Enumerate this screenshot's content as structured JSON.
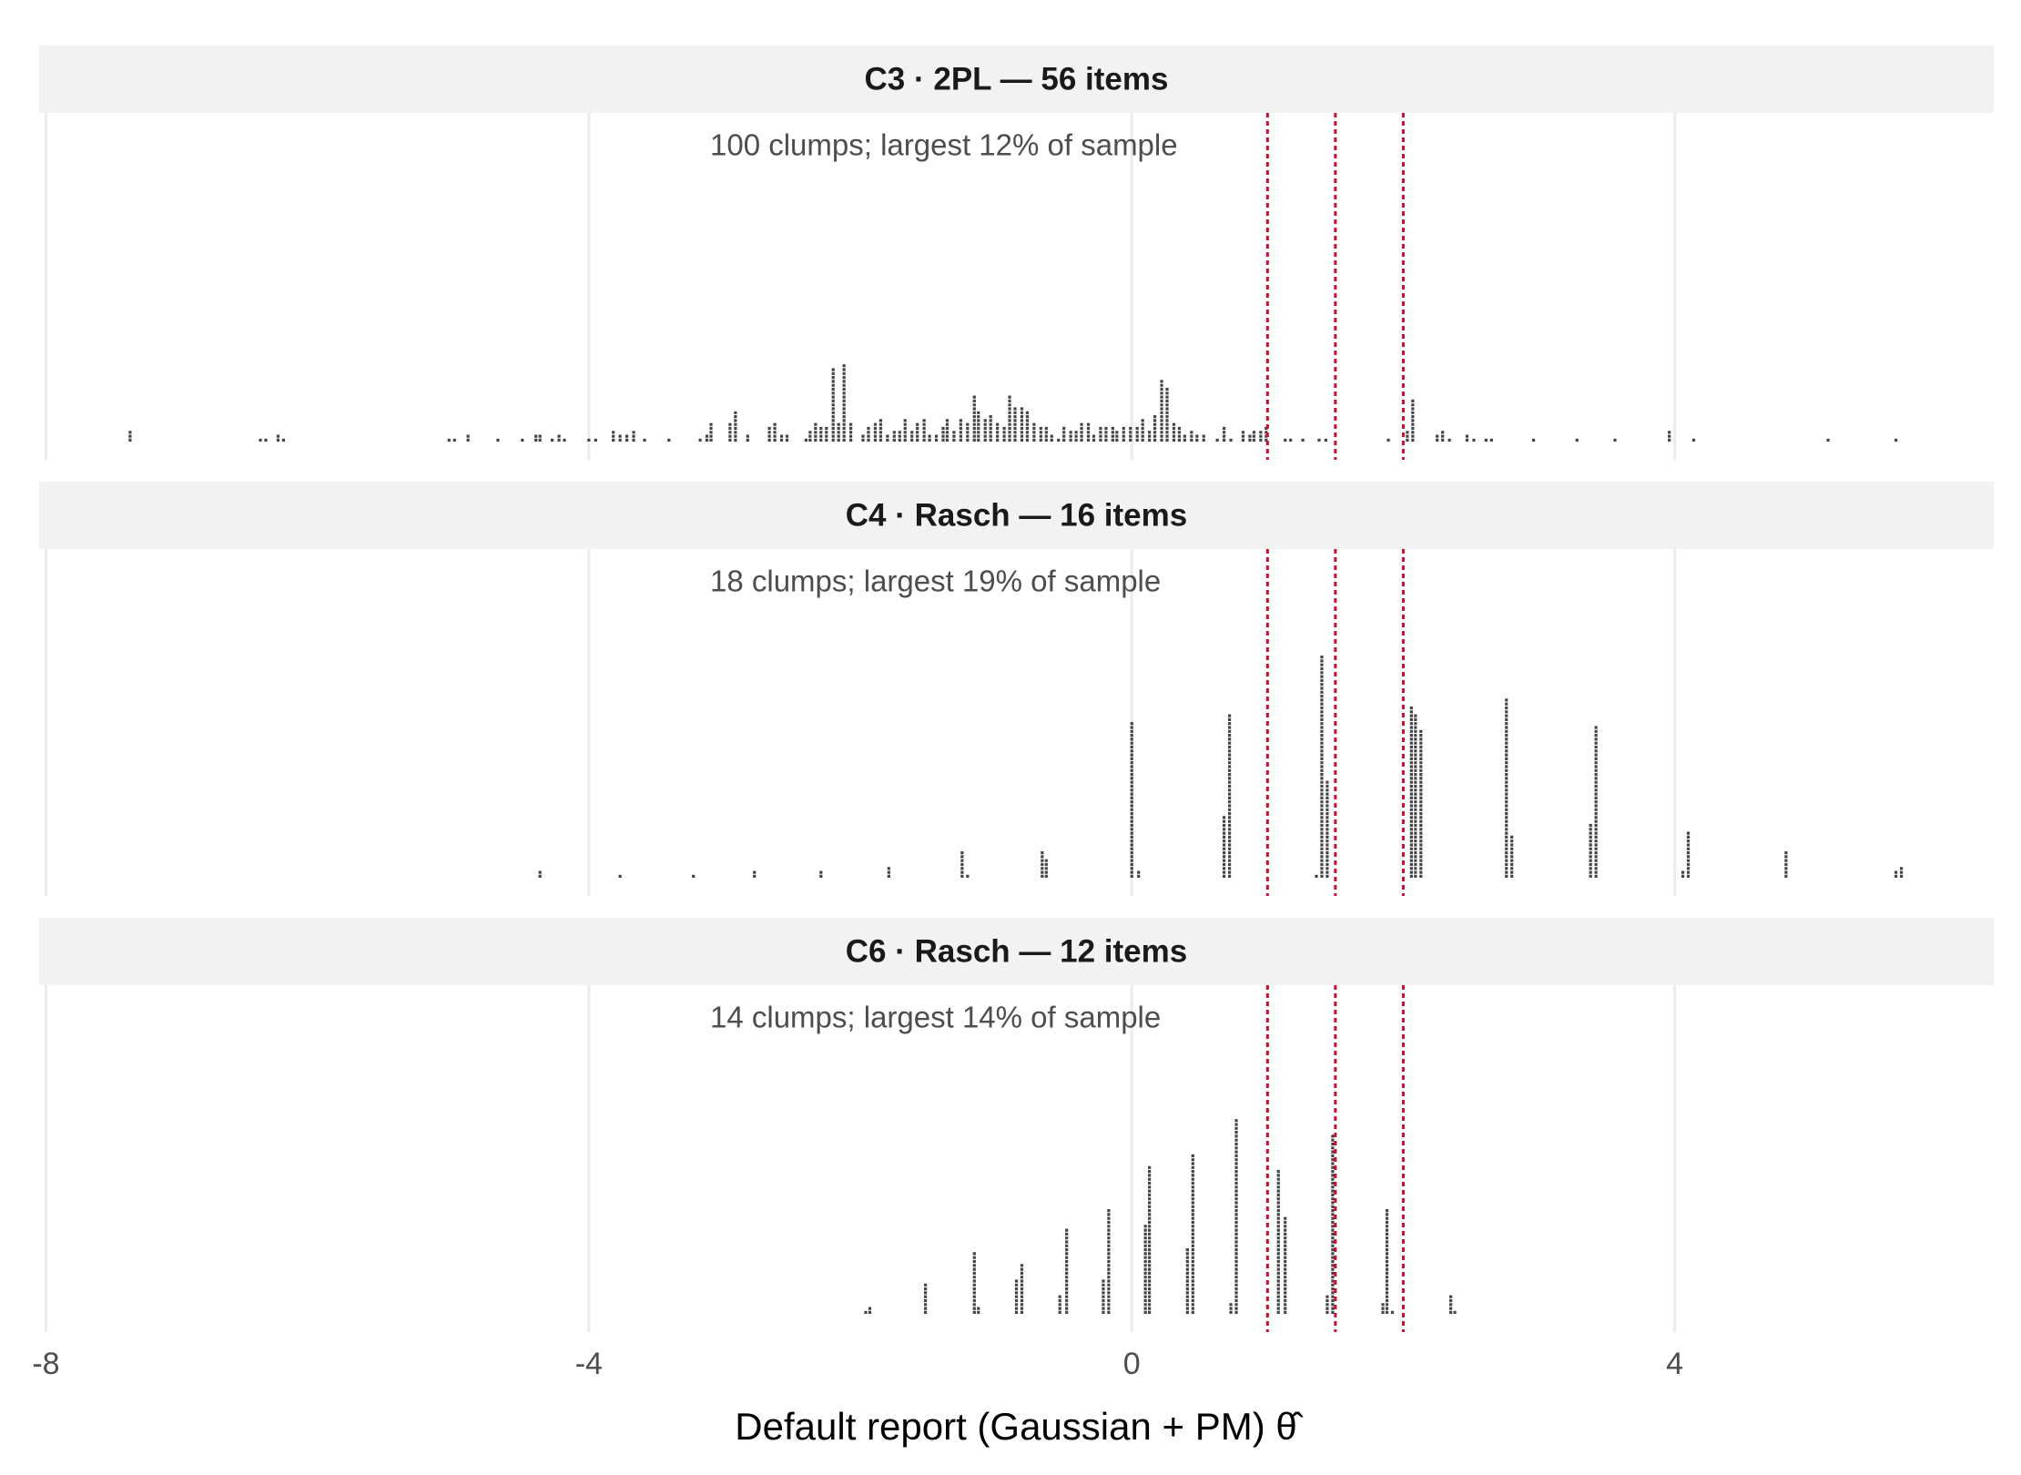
{
  "chart_data": [
    {
      "type": "dotplot",
      "title": "C3 · 2PL — 56 items",
      "annotation": "100 clumps; largest 12% of sample",
      "color": "#444444",
      "x": [
        -7.38,
        -6.42,
        -6.38,
        -6.29,
        -6.25,
        -5.03,
        -4.99,
        -4.89,
        -4.67,
        -4.49,
        -4.39,
        -4.36,
        -4.27,
        -4.22,
        -4.18,
        -4.0,
        -3.95,
        -3.82,
        -3.77,
        -3.72,
        -3.67,
        -3.59,
        -3.41,
        -3.18,
        -3.13,
        -3.1,
        -2.96,
        -2.92,
        -2.83,
        -2.67,
        -2.63,
        -2.58,
        -2.54,
        -2.4,
        -2.37,
        -2.33,
        -2.29,
        -2.25,
        -2.2,
        -2.16,
        -2.12,
        -2.07,
        -1.98,
        -1.94,
        -1.89,
        -1.85,
        -1.8,
        -1.75,
        -1.71,
        -1.67,
        -1.62,
        -1.58,
        -1.53,
        -1.49,
        -1.44,
        -1.39,
        -1.36,
        -1.31,
        -1.26,
        -1.21,
        -1.16,
        -1.13,
        -1.08,
        -1.04,
        -0.99,
        -0.94,
        -0.9,
        -0.86,
        -0.81,
        -0.77,
        -0.72,
        -0.67,
        -0.63,
        -0.59,
        -0.54,
        -0.5,
        -0.45,
        -0.41,
        -0.37,
        -0.32,
        -0.28,
        -0.23,
        -0.19,
        -0.14,
        -0.11,
        -0.06,
        -0.01,
        0.04,
        0.08,
        0.13,
        0.17,
        0.22,
        0.26,
        0.31,
        0.35,
        0.39,
        0.44,
        0.48,
        0.53,
        0.63,
        0.68,
        0.73,
        0.82,
        0.87,
        0.9,
        0.95,
        0.99,
        1.13,
        1.17,
        1.26,
        1.38,
        1.43,
        1.89,
        2.03,
        2.07,
        2.25,
        2.29,
        2.34,
        2.47,
        2.52,
        2.61,
        2.65,
        2.96,
        3.28,
        3.56,
        3.96,
        4.14,
        5.13,
        5.63
      ],
      "values": [
        3,
        1,
        1,
        2,
        1,
        1,
        1,
        2,
        1,
        1,
        2,
        2,
        1,
        2,
        1,
        1,
        1,
        3,
        2,
        2,
        3,
        1,
        1,
        1,
        2,
        5,
        5,
        8,
        2,
        4,
        5,
        2,
        2,
        1,
        3,
        5,
        4,
        4,
        19,
        5,
        20,
        5,
        2,
        4,
        5,
        6,
        2,
        3,
        3,
        6,
        3,
        5,
        6,
        2,
        2,
        4,
        6,
        3,
        6,
        5,
        12,
        8,
        6,
        7,
        5,
        4,
        12,
        9,
        9,
        8,
        5,
        4,
        4,
        2,
        1,
        4,
        3,
        3,
        5,
        5,
        2,
        4,
        4,
        4,
        3,
        4,
        4,
        4,
        6,
        3,
        7,
        16,
        14,
        5,
        4,
        2,
        3,
        2,
        2,
        1,
        4,
        1,
        3,
        2,
        3,
        3,
        4,
        1,
        1,
        1,
        1,
        1,
        1,
        3,
        11,
        2,
        3,
        1,
        2,
        1,
        1,
        1,
        1,
        1,
        1,
        3,
        1,
        1,
        1
      ],
      "xlim": [
        -8.05,
        6.35
      ],
      "xticks": [
        -8,
        -4,
        0,
        4
      ],
      "vlines": [
        1,
        1.5,
        2
      ],
      "vline_color": "#c8102e"
    },
    {
      "type": "dotplot",
      "title": "C4 · Rasch — 16 items",
      "annotation": "18 clumps; largest 19% of sample",
      "color": "#444444",
      "x": [
        -4.36,
        -3.77,
        -3.23,
        -2.78,
        -2.29,
        -1.79,
        -1.25,
        -1.21,
        -0.66,
        -0.63,
        0,
        0.05,
        0.68,
        0.72,
        1.36,
        1.4,
        1.44,
        2.06,
        2.09,
        2.13,
        2.76,
        2.8,
        3.38,
        3.42,
        4.06,
        4.1,
        4.82,
        5.63,
        5.67
      ],
      "values": [
        2,
        1,
        1,
        2,
        2,
        3,
        7,
        1,
        7,
        5,
        40,
        2,
        16,
        42,
        1,
        57,
        25,
        44,
        42,
        38,
        46,
        11,
        14,
        39,
        2,
        12,
        7,
        2,
        3
      ],
      "xlim": [
        -8.05,
        6.35
      ],
      "xticks": [
        -8,
        -4,
        0,
        4
      ],
      "vlines": [
        1,
        1.5,
        2
      ],
      "vline_color": "#c8102e"
    },
    {
      "type": "dotplot",
      "title": "C6 · Rasch — 12 items",
      "annotation": "14 clumps; largest 14% of sample",
      "color": "#444444",
      "x": [
        -1.96,
        -1.93,
        -1.52,
        -1.16,
        -1.13,
        -0.85,
        -0.81,
        -0.53,
        -0.48,
        -0.21,
        -0.17,
        0.1,
        0.13,
        0.41,
        0.45,
        0.73,
        0.77,
        1.08,
        1.13,
        1.44,
        1.48,
        1.85,
        1.88,
        1.92,
        2.35,
        2.38
      ],
      "values": [
        1,
        2,
        8,
        16,
        2,
        9,
        13,
        5,
        22,
        9,
        27,
        23,
        38,
        17,
        41,
        3,
        50,
        37,
        25,
        5,
        46,
        3,
        27,
        1,
        5,
        1
      ],
      "xlim": [
        -8.05,
        6.35
      ],
      "xticks": [
        -8,
        -4,
        0,
        4
      ],
      "vlines": [
        1,
        1.5,
        2
      ],
      "vline_color": "#c8102e",
      "xlabel": "Default report (Gaussian + PM) θ̂"
    }
  ]
}
